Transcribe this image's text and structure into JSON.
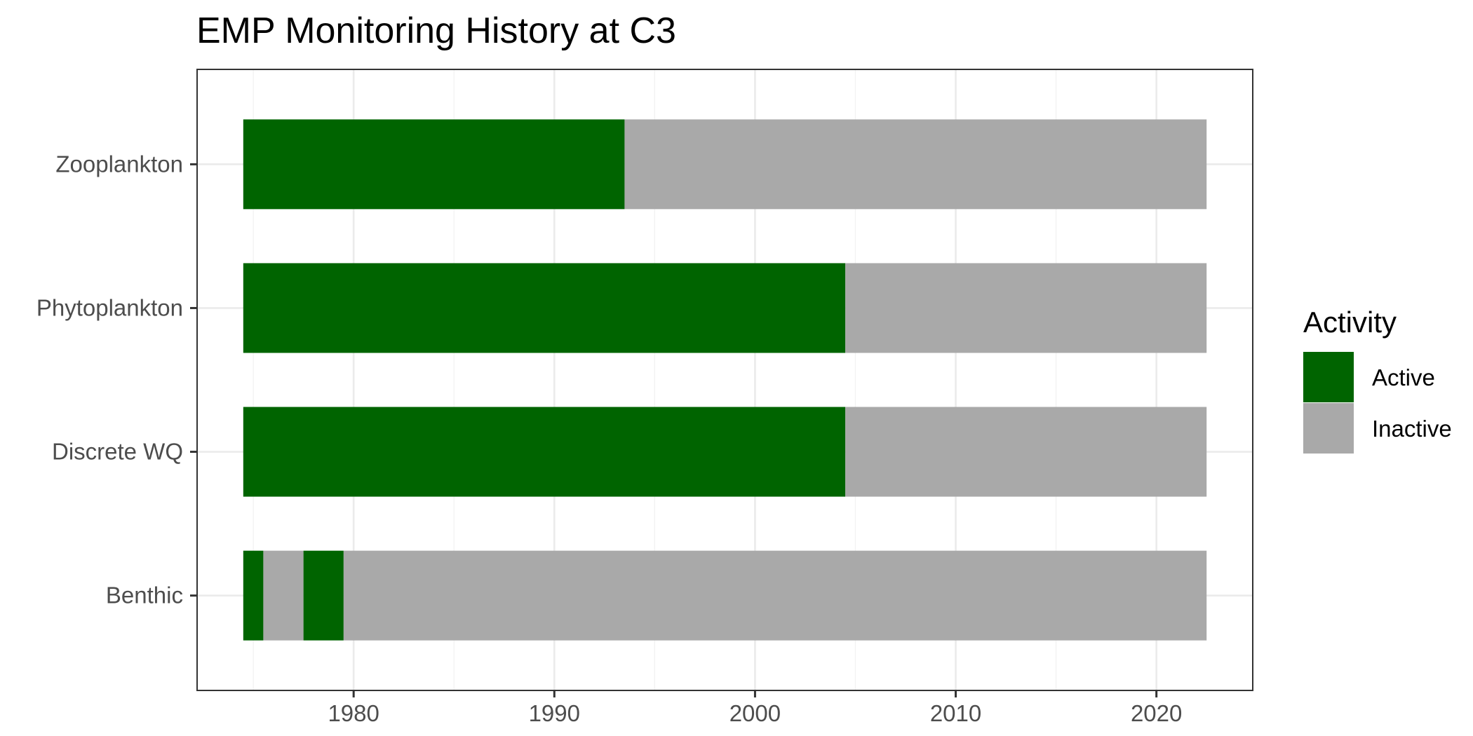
{
  "chart_data": {
    "type": "bar",
    "orientation": "horizontal",
    "stacked": true,
    "title": "EMP Monitoring History at C3",
    "xlabel": "",
    "ylabel": "",
    "xlim": [
      1972.2,
      2024.8
    ],
    "x_ticks": [
      1980,
      1990,
      2000,
      2010,
      2020
    ],
    "x_tick_labels": [
      "1980",
      "1990",
      "2000",
      "2010",
      "2020"
    ],
    "categories": [
      "Zooplankton",
      "Phytoplankton",
      "Discrete WQ",
      "Benthic"
    ],
    "grid": true,
    "legend": {
      "title": "Activity",
      "position": "right",
      "entries": [
        {
          "label": "Active",
          "color": "#006400"
        },
        {
          "label": "Inactive",
          "color": "#a9a9a9"
        }
      ]
    },
    "segments": [
      {
        "category": "Zooplankton",
        "start": 1974.5,
        "end": 1993.5,
        "activity": "Active"
      },
      {
        "category": "Zooplankton",
        "start": 1993.5,
        "end": 2022.5,
        "activity": "Inactive"
      },
      {
        "category": "Phytoplankton",
        "start": 1974.5,
        "end": 2004.5,
        "activity": "Active"
      },
      {
        "category": "Phytoplankton",
        "start": 2004.5,
        "end": 2022.5,
        "activity": "Inactive"
      },
      {
        "category": "Discrete WQ",
        "start": 1974.5,
        "end": 2004.5,
        "activity": "Active"
      },
      {
        "category": "Discrete WQ",
        "start": 2004.5,
        "end": 2022.5,
        "activity": "Inactive"
      },
      {
        "category": "Benthic",
        "start": 1974.5,
        "end": 1975.5,
        "activity": "Active"
      },
      {
        "category": "Benthic",
        "start": 1975.5,
        "end": 1977.5,
        "activity": "Inactive"
      },
      {
        "category": "Benthic",
        "start": 1977.5,
        "end": 1979.5,
        "activity": "Active"
      },
      {
        "category": "Benthic",
        "start": 1979.5,
        "end": 2022.5,
        "activity": "Inactive"
      }
    ]
  }
}
